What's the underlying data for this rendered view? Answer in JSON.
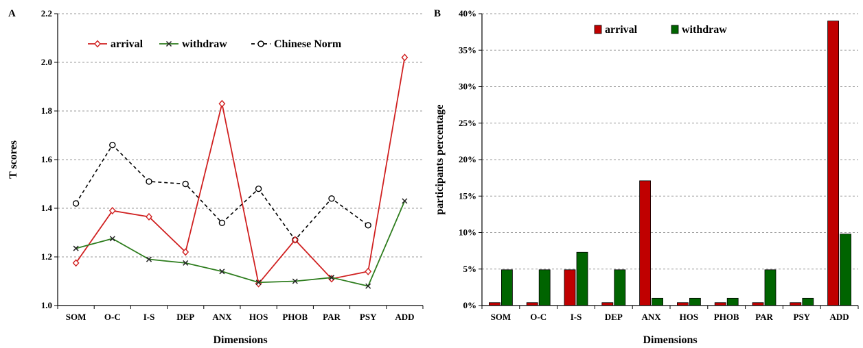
{
  "chart_data": [
    {
      "panel": "A",
      "type": "line",
      "categories": [
        "SOM",
        "O-C",
        "I-S",
        "DEP",
        "ANX",
        "HOS",
        "PHOB",
        "PAR",
        "PSY",
        "ADD"
      ],
      "series": [
        {
          "name": "arrival",
          "color": "#d02020",
          "marker": "diamond",
          "values": [
            1.175,
            1.39,
            1.365,
            1.22,
            1.83,
            1.09,
            1.27,
            1.11,
            1.14,
            2.02
          ]
        },
        {
          "name": "withdraw",
          "color": "#2e7d1e",
          "marker": "x",
          "values": [
            1.235,
            1.275,
            1.19,
            1.175,
            1.14,
            1.095,
            1.1,
            1.115,
            1.08,
            1.43
          ]
        },
        {
          "name": "Chinese Norm",
          "color": "#000000",
          "marker": "circle",
          "dashed": true,
          "values": [
            1.42,
            1.66,
            1.51,
            1.5,
            1.34,
            1.48,
            1.27,
            1.44,
            1.33,
            null
          ]
        }
      ],
      "xlabel": "Dimensions",
      "ylabel": "T scores",
      "ylim": [
        1.0,
        2.2
      ],
      "yticks": [
        "1.0",
        "1.2",
        "1.4",
        "1.6",
        "1.8",
        "2.0",
        "2.2"
      ],
      "grid": true,
      "legend_position": "top"
    },
    {
      "panel": "B",
      "type": "bar",
      "categories": [
        "SOM",
        "O-C",
        "I-S",
        "DEP",
        "ANX",
        "HOS",
        "PHOB",
        "PAR",
        "PSY",
        "ADD"
      ],
      "series": [
        {
          "name": "arrival",
          "color": "#c00000",
          "values": [
            0.4,
            0.4,
            4.9,
            0.4,
            17.1,
            0.4,
            0.4,
            0.4,
            0.4,
            39.0
          ]
        },
        {
          "name": "withdraw",
          "color": "#006400",
          "values": [
            4.9,
            4.9,
            7.3,
            4.9,
            1.0,
            1.0,
            1.0,
            4.9,
            1.0,
            9.8
          ]
        }
      ],
      "xlabel": "Dimensions",
      "ylabel": "participants percentage",
      "ylim": [
        0,
        40
      ],
      "yticks": [
        "0%",
        "5%",
        "10%",
        "15%",
        "20%",
        "25%",
        "30%",
        "35%",
        "40%"
      ],
      "grid": true,
      "legend_position": "top"
    }
  ]
}
